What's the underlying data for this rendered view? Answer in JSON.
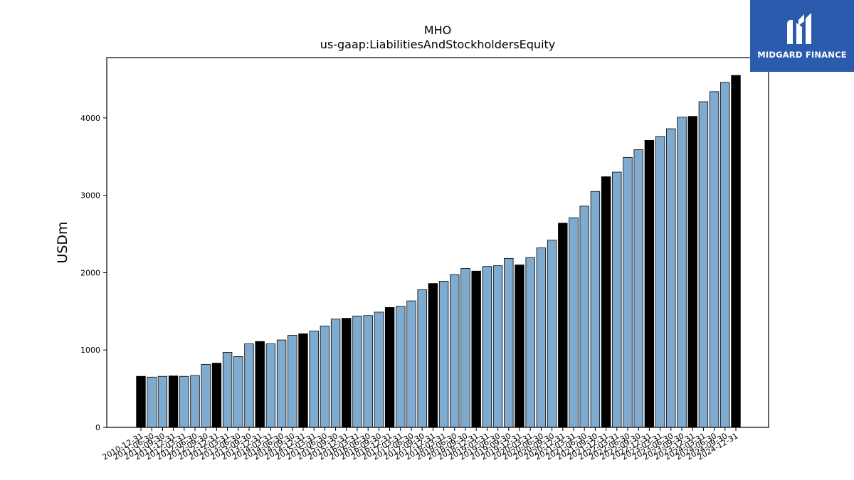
{
  "chart_data": {
    "type": "bar",
    "title": "MHO",
    "subtitle": "us-gaap:LiabilitiesAndStockholdersEquity",
    "xlabel": "",
    "ylabel": "USDm",
    "ylim": [
      0,
      4780
    ],
    "yticks": [
      0,
      1000,
      2000,
      3000,
      4000
    ],
    "grid": false,
    "colors": {
      "annual": "#000000",
      "quarterly": "#7fabd0",
      "edge": "#000000"
    },
    "categories": [
      "2010-12-31",
      "2011-06-30",
      "2011-09-30",
      "2011-12-31",
      "2012-03-31",
      "2012-06-30",
      "2012-09-30",
      "2012-12-31",
      "2013-03-31",
      "2013-06-30",
      "2013-09-30",
      "2013-12-31",
      "2014-03-31",
      "2014-06-30",
      "2014-09-30",
      "2014-12-31",
      "2015-03-31",
      "2015-06-30",
      "2015-09-30",
      "2015-12-31",
      "2016-03-31",
      "2016-06-30",
      "2016-09-30",
      "2016-12-31",
      "2017-03-31",
      "2017-06-30",
      "2017-09-30",
      "2017-12-31",
      "2018-03-31",
      "2018-06-30",
      "2018-09-30",
      "2018-12-31",
      "2019-03-31",
      "2019-06-30",
      "2019-09-30",
      "2019-12-31",
      "2020-03-31",
      "2020-06-30",
      "2020-09-30",
      "2020-12-31",
      "2021-03-31",
      "2021-06-30",
      "2021-09-30",
      "2021-12-31",
      "2022-03-31",
      "2022-06-30",
      "2022-09-30",
      "2022-12-31",
      "2023-03-31",
      "2023-06-30",
      "2023-09-30",
      "2023-12-31",
      "2024-03-31",
      "2024-06-30",
      "2024-09-30",
      "2024-12-31"
    ],
    "values": [
      660,
      650,
      660,
      665,
      660,
      670,
      815,
      830,
      970,
      915,
      1080,
      1110,
      1080,
      1130,
      1190,
      1210,
      1245,
      1310,
      1400,
      1410,
      1440,
      1445,
      1490,
      1550,
      1565,
      1635,
      1780,
      1860,
      1890,
      1975,
      2055,
      2020,
      2080,
      2090,
      2185,
      2100,
      2195,
      2320,
      2420,
      2640,
      2710,
      2860,
      3050,
      3240,
      3300,
      3490,
      3590,
      3710,
      3760,
      3860,
      4010,
      4020,
      4210,
      4340,
      4460,
      4550
    ],
    "annual_flags": [
      1,
      0,
      0,
      1,
      0,
      0,
      0,
      1,
      0,
      0,
      0,
      1,
      0,
      0,
      0,
      1,
      0,
      0,
      0,
      1,
      0,
      0,
      0,
      1,
      0,
      0,
      0,
      1,
      0,
      0,
      0,
      1,
      0,
      0,
      0,
      1,
      0,
      0,
      0,
      1,
      0,
      0,
      0,
      1,
      0,
      0,
      0,
      1,
      0,
      0,
      0,
      1,
      0,
      0,
      0,
      1
    ]
  },
  "logo": {
    "text": "MIDGARD FINANCE",
    "background": "#2b5bad"
  }
}
